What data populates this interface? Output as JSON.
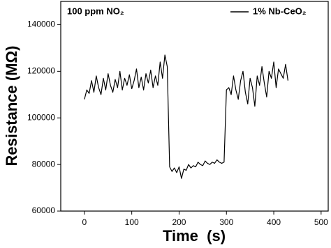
{
  "chart_data": {
    "type": "line",
    "annotation": "100 ppm NO₂",
    "x_label": "Time  (s)",
    "y_label": "Resistance (MΩ)",
    "x": [
      0,
      5,
      10,
      15,
      20,
      25,
      30,
      35,
      40,
      45,
      50,
      55,
      60,
      65,
      70,
      75,
      80,
      85,
      90,
      95,
      100,
      105,
      110,
      115,
      120,
      125,
      130,
      135,
      140,
      145,
      150,
      155,
      160,
      165,
      170,
      175,
      180,
      185,
      190,
      195,
      200,
      205,
      210,
      215,
      220,
      225,
      230,
      235,
      240,
      245,
      250,
      255,
      260,
      265,
      270,
      275,
      280,
      285,
      290,
      295,
      300,
      305,
      310,
      315,
      320,
      325,
      330,
      335,
      340,
      345,
      350,
      355,
      360,
      365,
      370,
      375,
      380,
      385,
      390,
      395,
      400,
      405,
      410,
      415,
      420,
      425,
      430
    ],
    "series": [
      {
        "name": "1% Nb-CeO₂",
        "color": "#000000",
        "values": [
          108000,
          112000,
          110500,
          116000,
          111000,
          118000,
          113000,
          110000,
          117000,
          112000,
          119000,
          114000,
          111000,
          116500,
          113000,
          120000,
          112000,
          117000,
          114000,
          118500,
          112500,
          116000,
          121000,
          113000,
          117500,
          112000,
          119000,
          115000,
          120500,
          113000,
          118000,
          114000,
          124000,
          117000,
          127000,
          122000,
          79000,
          77000,
          78500,
          76500,
          79000,
          74000,
          78000,
          77500,
          80000,
          78500,
          79500,
          79000,
          81000,
          80000,
          79500,
          81500,
          80500,
          80000,
          81000,
          80500,
          82000,
          81000,
          80500,
          81000,
          112000,
          113000,
          110000,
          118000,
          112000,
          108000,
          116000,
          120000,
          111000,
          106000,
          117000,
          113000,
          105000,
          118000,
          114000,
          122000,
          115000,
          109000,
          120000,
          117000,
          124000,
          113000,
          121000,
          119000,
          117000,
          123000,
          116000
        ]
      }
    ],
    "xlim": [
      -50,
      515
    ],
    "ylim": [
      60000,
      150000
    ],
    "xticks": [
      0,
      100,
      200,
      300,
      400,
      500
    ],
    "yticks": [
      60000,
      80000,
      100000,
      120000,
      140000
    ],
    "legend": "top-right"
  }
}
